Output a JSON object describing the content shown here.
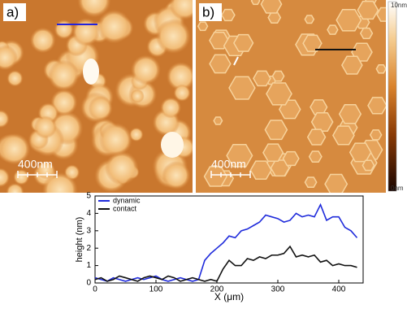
{
  "panels": {
    "a": {
      "label": "a)",
      "scale": "400nm"
    },
    "b": {
      "label": "b)",
      "scale": "400nm"
    }
  },
  "colorbar": {
    "max": "10nm",
    "min": "0nm"
  },
  "chart_data": {
    "type": "line",
    "xlabel": "X (μm)",
    "ylabel": "height (nm)",
    "x": [
      0,
      10,
      20,
      30,
      40,
      50,
      60,
      70,
      80,
      90,
      100,
      110,
      120,
      130,
      140,
      150,
      160,
      170,
      180,
      190,
      200,
      210,
      220,
      230,
      240,
      250,
      260,
      270,
      280,
      290,
      300,
      310,
      320,
      330,
      340,
      350,
      360,
      370,
      380,
      390,
      400,
      410,
      420,
      430
    ],
    "series": [
      {
        "name": "dynamic",
        "color": "#1f2bdb",
        "values": [
          0.3,
          0.2,
          0.1,
          0.3,
          0.2,
          0.1,
          0.2,
          0.3,
          0.2,
          0.3,
          0.4,
          0.2,
          0.1,
          0.2,
          0.3,
          0.2,
          0.1,
          0.2,
          1.3,
          1.7,
          2.0,
          2.3,
          2.7,
          2.6,
          3.0,
          3.1,
          3.3,
          3.5,
          3.9,
          3.8,
          3.7,
          3.5,
          3.6,
          4.0,
          3.8,
          3.9,
          3.8,
          4.5,
          3.6,
          3.8,
          3.8,
          3.2,
          3.0,
          2.6
        ]
      },
      {
        "name": "contact",
        "color": "#111111",
        "values": [
          0.2,
          0.3,
          0.1,
          0.2,
          0.4,
          0.3,
          0.2,
          0.1,
          0.3,
          0.4,
          0.3,
          0.2,
          0.4,
          0.3,
          0.1,
          0.2,
          0.3,
          0.2,
          0.1,
          0.2,
          0.1,
          0.8,
          1.3,
          1.0,
          1.0,
          1.4,
          1.3,
          1.5,
          1.4,
          1.6,
          1.6,
          1.7,
          2.1,
          1.5,
          1.6,
          1.5,
          1.6,
          1.2,
          1.3,
          1.0,
          1.1,
          1.0,
          1.0,
          0.9
        ]
      }
    ],
    "xlim": [
      0,
      440
    ],
    "ylim": [
      0,
      5
    ],
    "xticks": [
      0,
      100,
      200,
      300,
      400
    ],
    "yticks": [
      0,
      1,
      2,
      3,
      4,
      5
    ],
    "legend": "upper left"
  }
}
